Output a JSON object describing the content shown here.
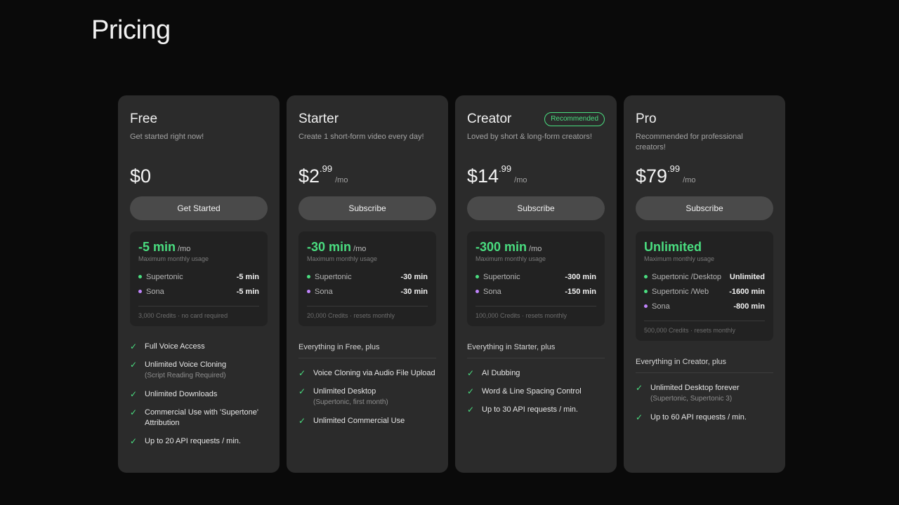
{
  "page": {
    "title": "Pricing"
  },
  "colors": {
    "accent": "#4ade80",
    "sona": "#c084fc",
    "card": "#2b2b2b"
  },
  "plans": [
    {
      "name": "Free",
      "tagline": "Get started right now!",
      "badge": "",
      "price": "$0",
      "cents": "",
      "unit": "",
      "cta": "Get Started",
      "usage_amount": "-5 min",
      "usage_unit": "/mo",
      "usage_sub": "Maximum monthly usage",
      "usage_rows": [
        {
          "label": "Supertonic",
          "value": "-5 min",
          "dot": "#4ade80"
        },
        {
          "label": "Sona",
          "value": "-5 min",
          "dot": "#c084fc"
        }
      ],
      "usage_foot": "3,000 Credits · no card required",
      "features_head": "",
      "features": [
        {
          "text": "Full Voice Access",
          "sub": ""
        },
        {
          "text": "Unlimited Voice Cloning",
          "sub": "(Script Reading Required)"
        },
        {
          "text": "Unlimited Downloads",
          "sub": ""
        },
        {
          "text": "Commercial Use with 'Supertone' Attribution",
          "sub": ""
        },
        {
          "text": "Up to 20 API requests / min.",
          "sub": ""
        }
      ]
    },
    {
      "name": "Starter",
      "tagline": "Create 1 short-form video every day!",
      "badge": "",
      "price": "$2",
      "cents": ".99",
      "unit": "/mo",
      "cta": "Subscribe",
      "usage_amount": "-30 min",
      "usage_unit": "/mo",
      "usage_sub": "Maximum monthly usage",
      "usage_rows": [
        {
          "label": "Supertonic",
          "value": "-30 min",
          "dot": "#4ade80"
        },
        {
          "label": "Sona",
          "value": "-30 min",
          "dot": "#c084fc"
        }
      ],
      "usage_foot": "20,000 Credits · resets monthly",
      "features_head": "Everything in Free, plus",
      "features": [
        {
          "text": "Voice Cloning via Audio File Upload",
          "sub": ""
        },
        {
          "text": "Unlimited Desktop",
          "sub": "(Supertonic, first month)"
        },
        {
          "text": "Unlimited Commercial Use",
          "sub": ""
        }
      ]
    },
    {
      "name": "Creator",
      "tagline": "Loved by short & long-form creators!",
      "badge": "Recommended",
      "price": "$14",
      "cents": ".99",
      "unit": "/mo",
      "cta": "Subscribe",
      "usage_amount": "-300 min",
      "usage_unit": "/mo",
      "usage_sub": "Maximum monthly usage",
      "usage_rows": [
        {
          "label": "Supertonic",
          "value": "-300 min",
          "dot": "#4ade80"
        },
        {
          "label": "Sona",
          "value": "-150 min",
          "dot": "#c084fc"
        }
      ],
      "usage_foot": "100,000 Credits · resets monthly",
      "features_head": "Everything in Starter, plus",
      "features": [
        {
          "text": "AI Dubbing",
          "sub": ""
        },
        {
          "text": "Word & Line Spacing Control",
          "sub": ""
        },
        {
          "text": "Up to 30 API requests / min.",
          "sub": ""
        }
      ]
    },
    {
      "name": "Pro",
      "tagline": "Recommended for professional creators!",
      "badge": "",
      "price": "$79",
      "cents": ".99",
      "unit": "/mo",
      "cta": "Subscribe",
      "usage_amount": "Unlimited",
      "usage_unit": "",
      "usage_sub": "Maximum monthly usage",
      "usage_rows": [
        {
          "label": "Supertonic /Desktop",
          "value": "Unlimited",
          "dot": "#4ade80"
        },
        {
          "label": "Supertonic /Web",
          "value": "-1600 min",
          "dot": "#4ade80"
        },
        {
          "label": "Sona",
          "value": "-800 min",
          "dot": "#c084fc"
        }
      ],
      "usage_foot": "500,000 Credits · resets monthly",
      "features_head": "Everything in Creator, plus",
      "features": [
        {
          "text": "Unlimited Desktop forever",
          "sub": "(Supertonic, Supertonic 3)"
        },
        {
          "text": "Up to 60 API requests / min.",
          "sub": ""
        }
      ]
    }
  ]
}
